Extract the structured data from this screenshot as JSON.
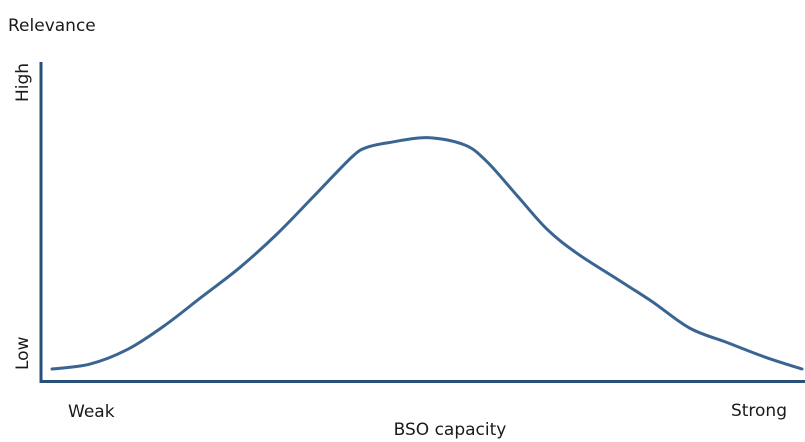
{
  "chart_data": {
    "type": "line",
    "title": "",
    "ylabel": "Relevance",
    "xlabel": "BSO capacity",
    "y_tick_labels": [
      "High",
      "Low"
    ],
    "x_tick_labels": [
      "Weak",
      "Strong"
    ],
    "grid": false,
    "xlim": [
      0,
      1
    ],
    "ylim": [
      0,
      1
    ],
    "series": [
      {
        "x": [
          0.0,
          0.05,
          0.1,
          0.15,
          0.2,
          0.25,
          0.3,
          0.35,
          0.4,
          0.42,
          0.45,
          0.5,
          0.55,
          0.58,
          0.62,
          0.66,
          0.7,
          0.75,
          0.8,
          0.85,
          0.9,
          0.95,
          1.0
        ],
        "values": [
          0.0,
          0.02,
          0.08,
          0.18,
          0.3,
          0.42,
          0.56,
          0.72,
          0.88,
          0.92,
          0.94,
          0.96,
          0.93,
          0.86,
          0.72,
          0.58,
          0.48,
          0.38,
          0.28,
          0.17,
          0.11,
          0.05,
          0.0
        ],
        "color": "#3a6593"
      }
    ]
  }
}
